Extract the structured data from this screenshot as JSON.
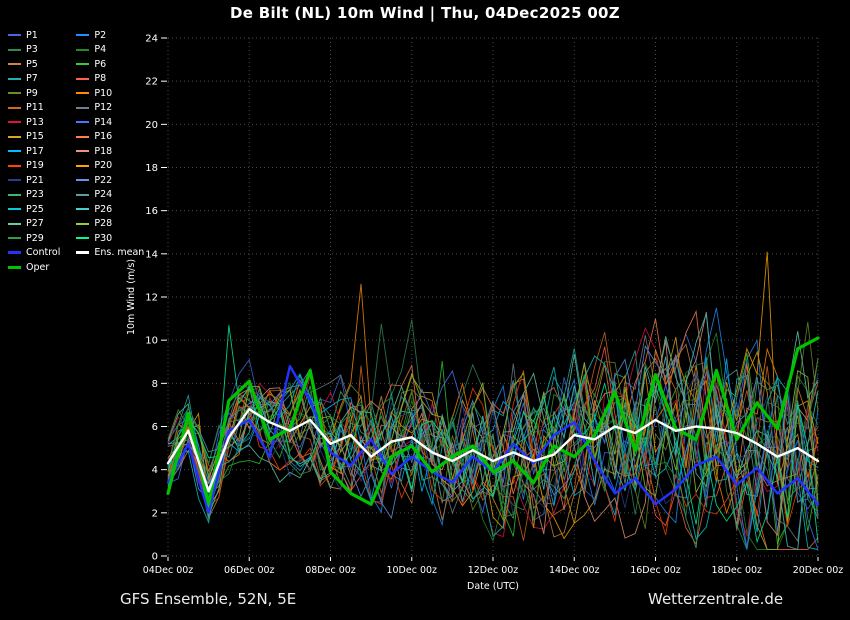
{
  "title": "De Bilt  (NL)  10m Wind | Thu, 04Dec2025 00Z",
  "footer": {
    "left": "GFS Ensemble, 52N, 5E",
    "right": "Wetterzentrale.de"
  },
  "chart_data": {
    "type": "line",
    "title": "De Bilt  (NL)  10m Wind | Thu, 04Dec2025 00Z",
    "xlabel": "Date (UTC)",
    "ylabel": "10m Wind (m/s)",
    "ylim": [
      0,
      24
    ],
    "ytick_step": 2,
    "grid": "dotted",
    "legend_position": "top-left",
    "x_ticklabels": [
      "04Dec 00z",
      "06Dec 00z",
      "08Dec 00z",
      "10Dec 00z",
      "12Dec 00z",
      "14Dec 00z",
      "16Dec 00z",
      "18Dec 00z",
      "20Dec 00z"
    ],
    "x_step_hours": 12,
    "series": [
      {
        "name": "Ens. mean",
        "color": "#ffffff",
        "width": 2.4,
        "values": [
          4.3,
          5.8,
          3.0,
          5.5,
          6.8,
          6.2,
          5.8,
          6.3,
          5.2,
          5.6,
          4.6,
          5.3,
          5.5,
          4.8,
          4.4,
          4.9,
          4.4,
          4.8,
          4.4,
          4.7,
          5.6,
          5.4,
          6.0,
          5.7,
          6.3,
          5.8,
          6.0,
          5.9,
          5.7,
          5.2,
          4.6,
          5.0,
          4.4
        ]
      },
      {
        "name": "Control",
        "color": "#2233ff",
        "width": 2.4,
        "values": [
          3.4,
          5.2,
          2.0,
          5.8,
          6.3,
          4.6,
          8.8,
          7.2,
          4.8,
          4.2,
          5.4,
          3.8,
          4.6,
          3.9,
          3.4,
          4.6,
          3.9,
          5.2,
          4.3,
          5.6,
          6.2,
          4.4,
          2.9,
          3.6,
          2.4,
          3.1,
          4.2,
          4.6,
          3.3,
          4.1,
          2.9,
          3.6,
          2.4
        ]
      },
      {
        "name": "Oper",
        "color": "#00c400",
        "width": 3.2,
        "values": [
          2.9,
          6.6,
          2.4,
          7.2,
          8.1,
          5.4,
          5.9,
          8.6,
          3.9,
          2.9,
          2.4,
          4.6,
          5.1,
          3.9,
          4.6,
          5.1,
          3.9,
          4.4,
          3.4,
          5.1,
          4.6,
          5.6,
          7.6,
          4.9,
          8.4,
          5.9,
          5.4,
          8.6,
          5.4,
          7.1,
          5.9,
          9.6,
          10.1
        ]
      }
    ],
    "members": [
      {
        "name": "P1",
        "color": "#4169e1"
      },
      {
        "name": "P2",
        "color": "#1e90ff"
      },
      {
        "name": "P3",
        "color": "#2e8b57"
      },
      {
        "name": "P4",
        "color": "#228b22"
      },
      {
        "name": "P5",
        "color": "#cd853f"
      },
      {
        "name": "P6",
        "color": "#32cd32"
      },
      {
        "name": "P7",
        "color": "#20b2aa"
      },
      {
        "name": "P8",
        "color": "#ff6347"
      },
      {
        "name": "P9",
        "color": "#6b8e23"
      },
      {
        "name": "P10",
        "color": "#ff8c00"
      },
      {
        "name": "P11",
        "color": "#d2691e"
      },
      {
        "name": "P12",
        "color": "#708090"
      },
      {
        "name": "P13",
        "color": "#dc143c"
      },
      {
        "name": "P14",
        "color": "#4876ff"
      },
      {
        "name": "P15",
        "color": "#daa520"
      },
      {
        "name": "P16",
        "color": "#ff7f50"
      },
      {
        "name": "P17",
        "color": "#00bfff"
      },
      {
        "name": "P18",
        "color": "#e9967a"
      },
      {
        "name": "P19",
        "color": "#ff4500"
      },
      {
        "name": "P20",
        "color": "#ffa500"
      },
      {
        "name": "P21",
        "color": "#27408b"
      },
      {
        "name": "P22",
        "color": "#6495ed"
      },
      {
        "name": "P23",
        "color": "#3cb371"
      },
      {
        "name": "P24",
        "color": "#5f9ea0"
      },
      {
        "name": "P25",
        "color": "#00ced1"
      },
      {
        "name": "P26",
        "color": "#48d1cc"
      },
      {
        "name": "P27",
        "color": "#66cdaa"
      },
      {
        "name": "P28",
        "color": "#9acd32"
      },
      {
        "name": "P29",
        "color": "#2f9e44"
      },
      {
        "name": "P30",
        "color": "#00fa9a"
      }
    ],
    "member_seed": 20251204,
    "member_spread": [
      1.2,
      4.4
    ]
  }
}
